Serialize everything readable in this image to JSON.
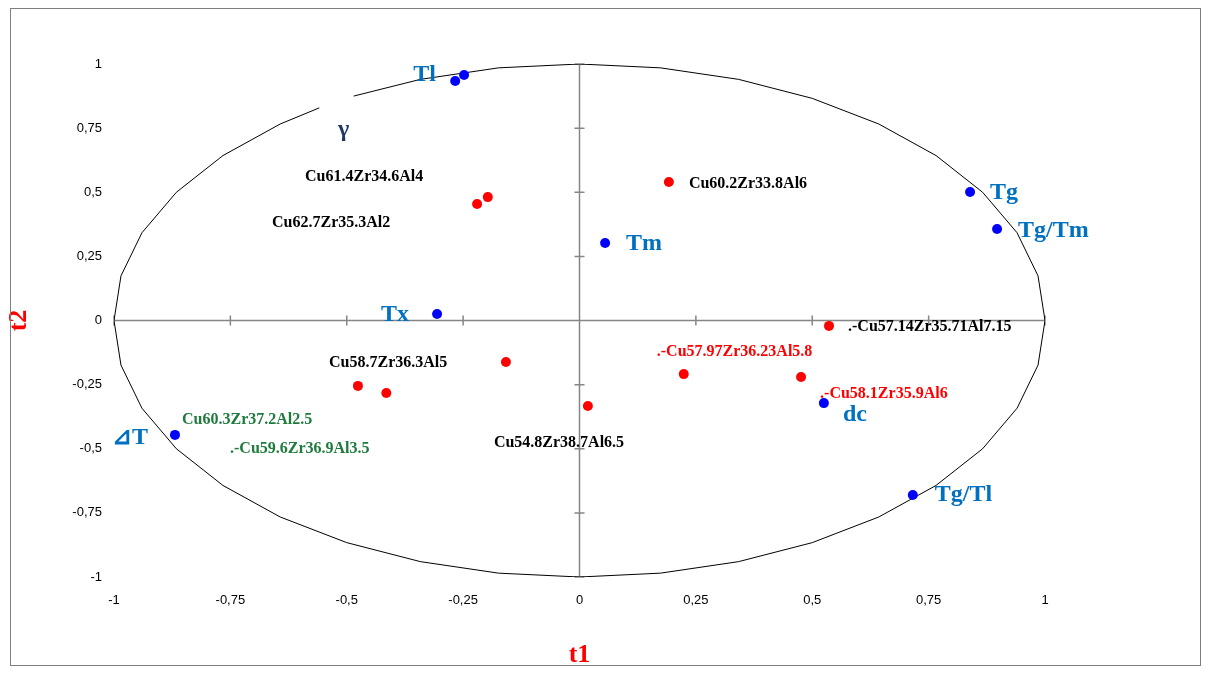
{
  "chart_data": {
    "type": "scatter",
    "xlabel": "t1",
    "ylabel": "t2",
    "xlim": [
      -1,
      1
    ],
    "ylim": [
      -1,
      1
    ],
    "xticks": [
      -1,
      {
        "value": -0.75,
        "label": "-0,75"
      },
      {
        "value": -0.5,
        "label": "-0,5"
      },
      {
        "value": -0.25,
        "label": "-0,25"
      },
      0,
      {
        "value": 0.25,
        "label": "0,25"
      },
      {
        "value": 0.5,
        "label": "0,5"
      },
      {
        "value": 0.75,
        "label": "0,75"
      },
      1
    ],
    "yticks": [
      -1,
      {
        "value": -0.75,
        "label": "-0,75"
      },
      {
        "value": -0.5,
        "label": "-0,5"
      },
      {
        "value": -0.25,
        "label": "-0,25"
      },
      0,
      {
        "value": 0.25,
        "label": "0,25"
      },
      {
        "value": 0.5,
        "label": "0,5"
      },
      {
        "value": 0.75,
        "label": "0,75"
      },
      1
    ],
    "legend": false,
    "marker": "circle",
    "series": [
      {
        "type": "line",
        "marker": "none",
        "color": "#000000",
        "x": [
          -0.559,
          -0.643,
          -0.766,
          -0.866,
          -0.94,
          -0.985,
          -1,
          -0.985,
          -0.94,
          -0.866,
          -0.766,
          -0.643,
          -0.5,
          -0.342,
          -0.174,
          0,
          0.174,
          0.342,
          0.5,
          0.643,
          0.766,
          0.866,
          0.94,
          0.985,
          1,
          0.985,
          0.94,
          0.866,
          0.766,
          0.643,
          0.5,
          0.342,
          0.174,
          0,
          -0.174,
          -0.342,
          -0.485
        ],
        "values": [
          0.829,
          0.766,
          0.643,
          0.5,
          0.342,
          0.174,
          0,
          -0.174,
          -0.342,
          -0.5,
          -0.643,
          -0.766,
          -0.866,
          -0.94,
          -0.985,
          -1,
          -0.985,
          -0.94,
          -0.866,
          -0.766,
          -0.643,
          -0.5,
          -0.342,
          -0.174,
          0,
          0.174,
          0.342,
          0.5,
          0.643,
          0.766,
          0.866,
          0.94,
          0.985,
          1,
          0.985,
          0.94,
          0.875
        ]
      },
      {
        "color": "#0000ff",
        "x": [
          -0.267,
          -0.248,
          0.839,
          0.897,
          0.055,
          -0.306,
          -0.869,
          0.525,
          0.716
        ],
        "values": [
          0.934,
          0.957,
          0.501,
          0.357,
          0.302,
          0.025,
          -0.446,
          -0.322,
          -0.68
        ]
      },
      {
        "color": "#ff0000",
        "x": [
          -0.197,
          -0.22,
          0.192,
          0.536,
          -0.158,
          -0.476,
          -0.415,
          0.018,
          0.224,
          0.476
        ],
        "values": [
          0.481,
          0.454,
          0.54,
          -0.021,
          -0.162,
          -0.255,
          -0.283,
          -0.333,
          -0.209,
          -0.22
        ]
      }
    ],
    "annotations": [
      {
        "text": "Tl",
        "x": -0.267,
        "y": 0.934
      },
      "γ",
      "Cu61.4Zr34.6Al4",
      "Cu62.7Zr35.3Al2",
      {
        "text": "Cu60.2Zr33.8Al6",
        "x": 0.192,
        "y": 0.54
      },
      {
        "text": "Tm",
        "x": 0.055,
        "y": 0.302
      },
      {
        "text": "Tg",
        "x": 0.839,
        "y": 0.501
      },
      {
        "text": "Tg/Tm",
        "x": 0.897,
        "y": 0.357
      },
      {
        "text": "Tx",
        "x": -0.306,
        "y": 0.025
      },
      {
        "text": ".-Cu57.14Zr35.71Al7.15",
        "x": 0.536,
        "y": -0.021
      },
      "Cu58.7Zr36.3Al5",
      {
        "text": ".-Cu57.97Zr36.23Al5.8",
        "x": 0.224,
        "y": -0.209
      },
      {
        "text": ".-Cu58.1Zr35.9Al6",
        "x": 0.476,
        "y": -0.22
      },
      {
        "text": "dc",
        "x": 0.525,
        "y": -0.322
      },
      "Cu60.3Zr37.2Al2.5",
      {
        "text": "⊿T",
        "x": -0.869,
        "y": -0.446
      },
      ".-Cu59.6Zr36.9Al3.5",
      {
        "text": "Cu54.8Zr38.7Al6.5",
        "x": 0.018,
        "y": -0.333
      },
      {
        "text": "Tg/Tl",
        "x": 0.716,
        "y": -0.68
      }
    ]
  }
}
